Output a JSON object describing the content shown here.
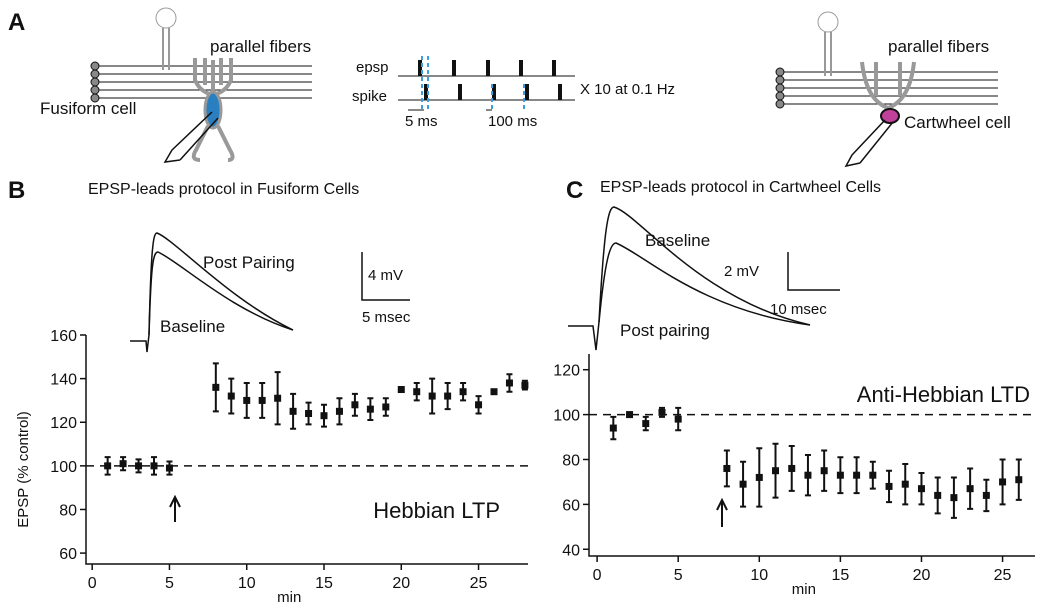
{
  "panel_a": {
    "letter": "A",
    "left_cell": {
      "fibers": "parallel fibers",
      "cell": "Fusiform cell"
    },
    "protocol": {
      "epsp": "epsp",
      "spike": "spike",
      "repeat": "X 10 at 0.1 Hz",
      "delay": "5 ms",
      "interval": "100 ms"
    },
    "right_cell": {
      "fibers": "parallel fibers",
      "cell": "Cartwheel cell"
    }
  },
  "panel_b": {
    "letter": "B",
    "title": "EPSP-leads protocol in Fusiform Cells",
    "traces": {
      "upper": "Post Pairing",
      "lower": "Baseline",
      "scale_y": "4 mV",
      "scale_x": "5 msec"
    }
  },
  "panel_c": {
    "letter": "C",
    "title": "EPSP-leads protocol in Cartwheel Cells",
    "traces": {
      "upper": "Baseline",
      "lower": "Post pairing",
      "scale_y": "2 mV",
      "scale_x": "10 msec"
    }
  },
  "chart_data": [
    {
      "type": "errorbar",
      "y_label": "EPSP (% control)",
      "x_label": "min",
      "annotation": "Hebbian LTP",
      "reference_line": 100,
      "xlim": [
        -0.4,
        28.2
      ],
      "ylim": [
        55,
        160
      ],
      "xticks": [
        0,
        5,
        10,
        15,
        20,
        25
      ],
      "yticks": [
        60,
        80,
        100,
        120,
        140,
        160
      ],
      "series": [
        {
          "color": "#111111",
          "x": [
            1,
            2,
            3,
            4,
            5,
            8,
            9,
            10,
            11,
            12,
            13,
            14,
            15,
            16,
            17,
            18,
            19,
            20,
            21,
            22,
            23,
            24,
            25,
            26,
            27,
            28
          ],
          "values": [
            100,
            101,
            100,
            100,
            99,
            136,
            132,
            130,
            130,
            131,
            125,
            124,
            123,
            125,
            128,
            126,
            127,
            135,
            134,
            132,
            132,
            134,
            128,
            134,
            138,
            137
          ],
          "errors": [
            4,
            3,
            3,
            4,
            3,
            11,
            8,
            8,
            8,
            12,
            8,
            5,
            5,
            6,
            5,
            5,
            4,
            1,
            4,
            8,
            6,
            4,
            4,
            1,
            4,
            2
          ]
        }
      ]
    },
    {
      "type": "errorbar",
      "x_label": "min",
      "annotation": "Anti-Hebbian LTD",
      "reference_line": 100,
      "xlim": [
        -0.5,
        27
      ],
      "ylim": [
        37,
        127
      ],
      "xticks": [
        0,
        5,
        10,
        15,
        20,
        25
      ],
      "yticks": [
        40,
        60,
        80,
        100,
        120
      ],
      "series": [
        {
          "color": "#111111",
          "x": [
            1,
            2,
            3,
            4,
            5,
            8,
            9,
            10,
            11,
            12,
            13,
            14,
            15,
            16,
            17,
            18,
            19,
            20,
            21,
            22,
            23,
            24,
            25,
            26
          ],
          "values": [
            94,
            100,
            96,
            101,
            98,
            76,
            69,
            72,
            75,
            76,
            73,
            75,
            73,
            73,
            73,
            68,
            69,
            67,
            64,
            63,
            67,
            64,
            70,
            71
          ],
          "errors": [
            5,
            1,
            3,
            2,
            5,
            8,
            10,
            13,
            12,
            10,
            9,
            9,
            8,
            8,
            6,
            7,
            9,
            7,
            8,
            9,
            9,
            7,
            10,
            9
          ]
        }
      ]
    }
  ]
}
